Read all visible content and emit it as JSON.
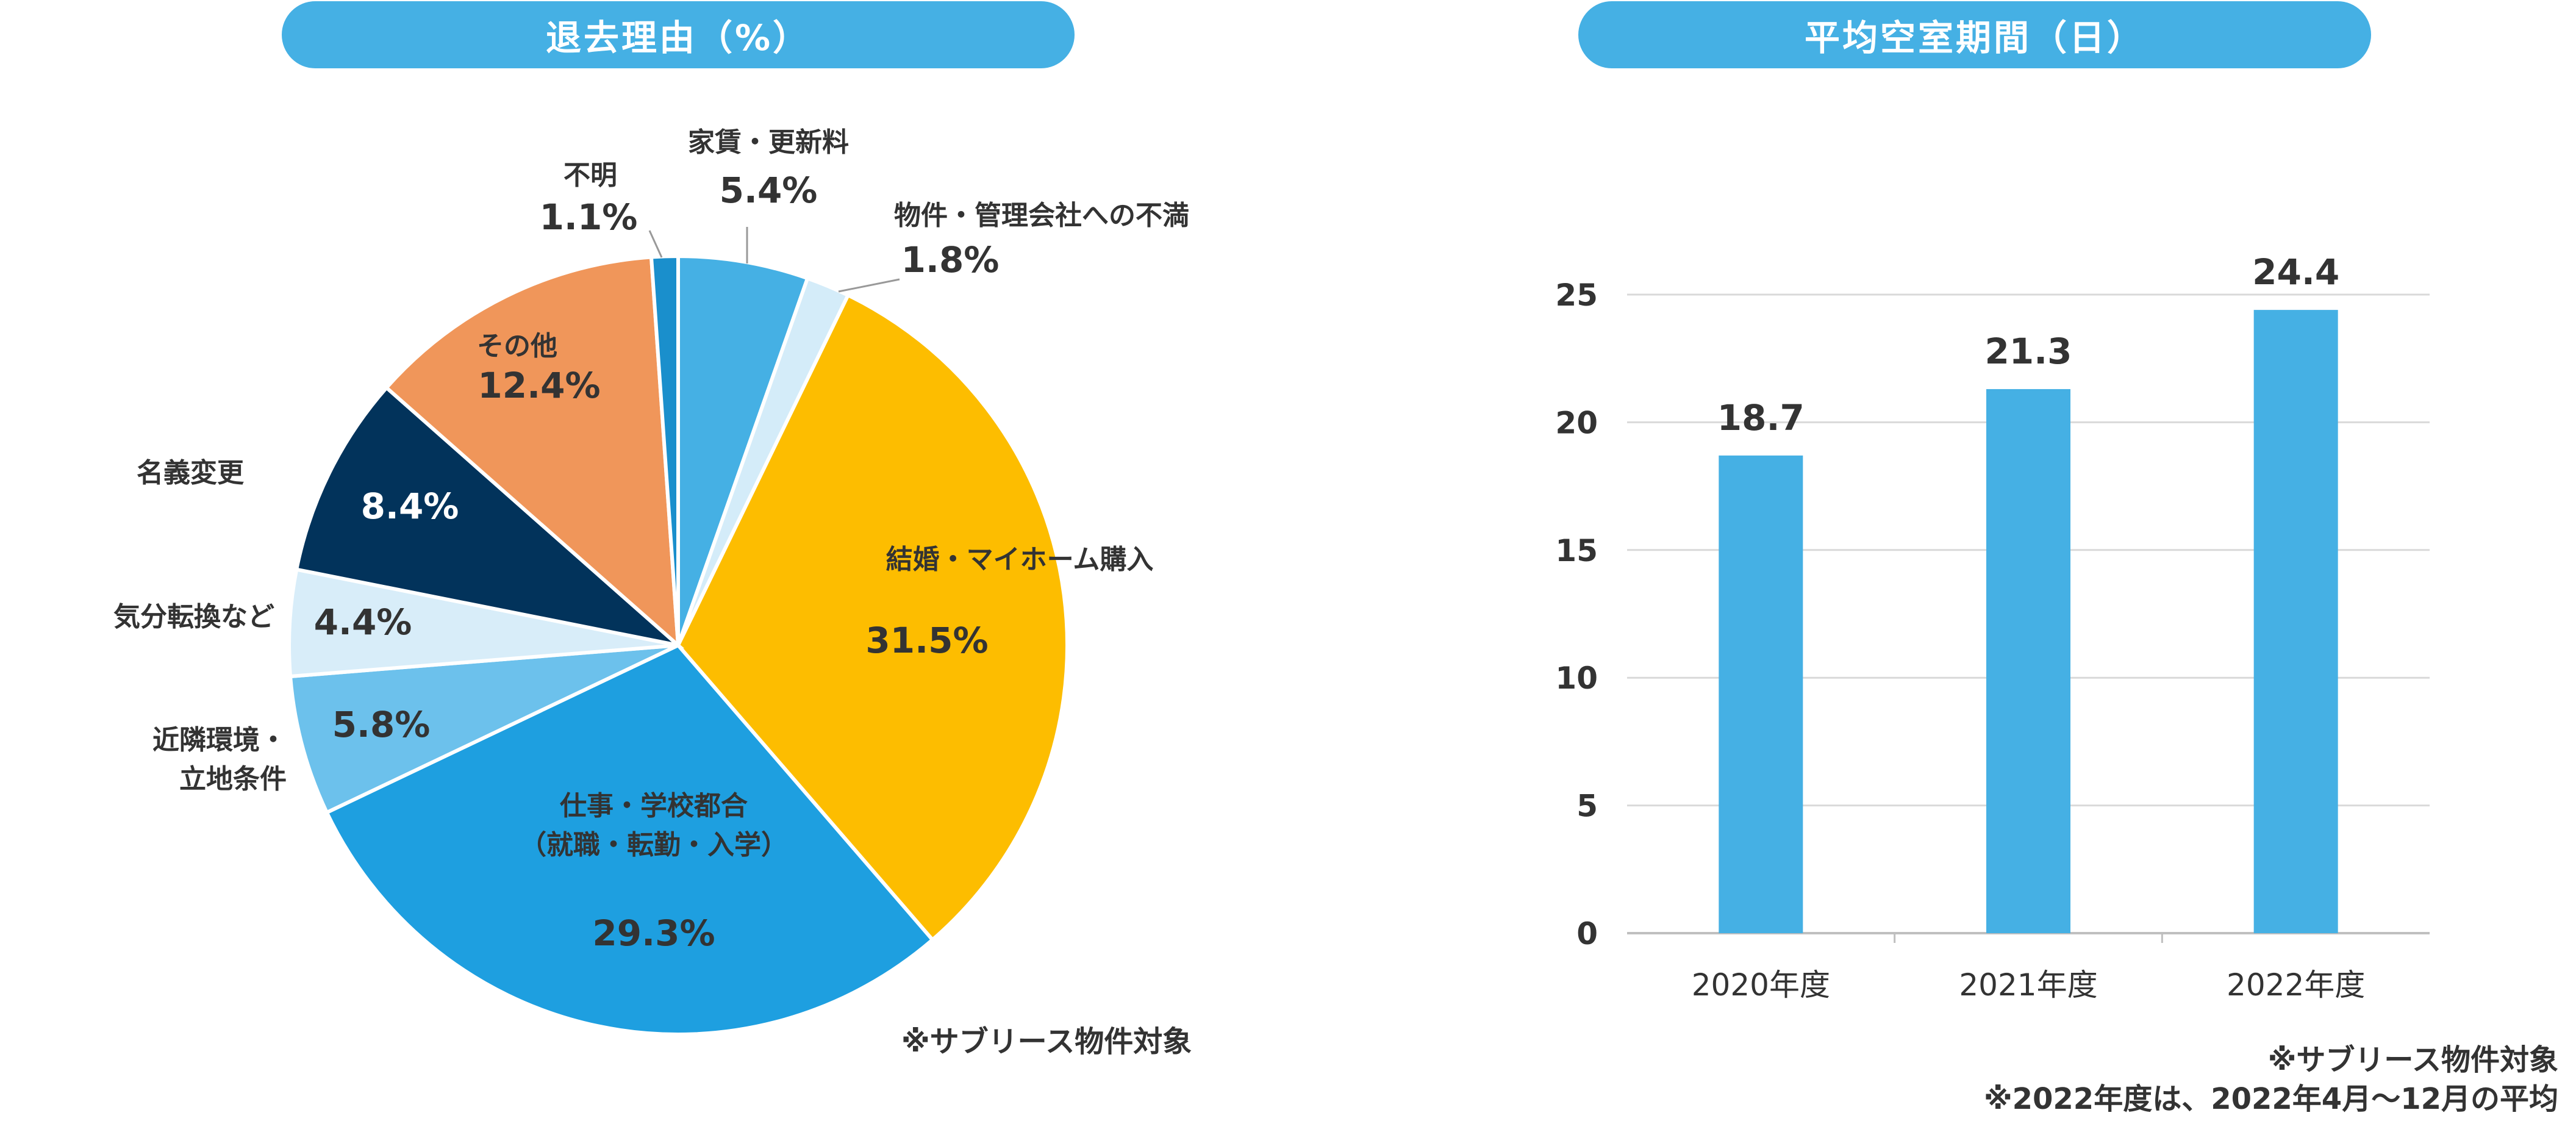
{
  "pie_panel": {
    "title": "退去理由（%）",
    "note": "※サブリース物件対象"
  },
  "bar_panel": {
    "title": "平均空室期間（日）",
    "notes": [
      "※サブリース物件対象",
      "※2022年度は、2022年4月〜12月の平均"
    ]
  },
  "chart_data": [
    {
      "type": "pie",
      "title": "退去理由（%）",
      "slices": [
        {
          "label": "家賃・更新料",
          "value": 5.4,
          "value_label": "5.4%",
          "color": "#45b0e4"
        },
        {
          "label": "物件・管理会社への不満",
          "value": 1.8,
          "value_label": "1.8%",
          "color": "#d4ecf9"
        },
        {
          "label": "結婚・マイホーム購入",
          "value": 31.5,
          "value_label": "31.5%",
          "color": "#fdbd00"
        },
        {
          "label": "仕事・学校都合\n（就職・転勤・入学）",
          "value": 29.3,
          "value_label": "29.3%",
          "color": "#1e9fe0"
        },
        {
          "label": "近隣環境・\n立地条件",
          "value": 5.8,
          "value_label": "5.8%",
          "color": "#6cc1ec"
        },
        {
          "label": "気分転換など",
          "value": 4.4,
          "value_label": "4.4%",
          "color": "#d8edf9"
        },
        {
          "label": "名義変更",
          "value": 8.4,
          "value_label": "8.4%",
          "color": "#02335b"
        },
        {
          "label": "その他",
          "value": 12.4,
          "value_label": "12.4%",
          "color": "#f0965a"
        },
        {
          "label": "不明",
          "value": 1.1,
          "value_label": "1.1%",
          "color": "#1a8fcc"
        }
      ]
    },
    {
      "type": "bar",
      "title": "平均空室期間（日）",
      "categories": [
        "2020年度",
        "2021年度",
        "2022年度"
      ],
      "values": [
        18.7,
        21.3,
        24.4
      ],
      "value_labels": [
        "18.7",
        "21.3",
        "24.4"
      ],
      "ylim": [
        0,
        25
      ],
      "yticks": [
        0,
        5,
        10,
        15,
        20,
        25
      ],
      "ytick_labels": [
        "0",
        "5",
        "10",
        "15",
        "20",
        "25"
      ],
      "grid": true,
      "bar_color": "#45b0e4"
    }
  ]
}
